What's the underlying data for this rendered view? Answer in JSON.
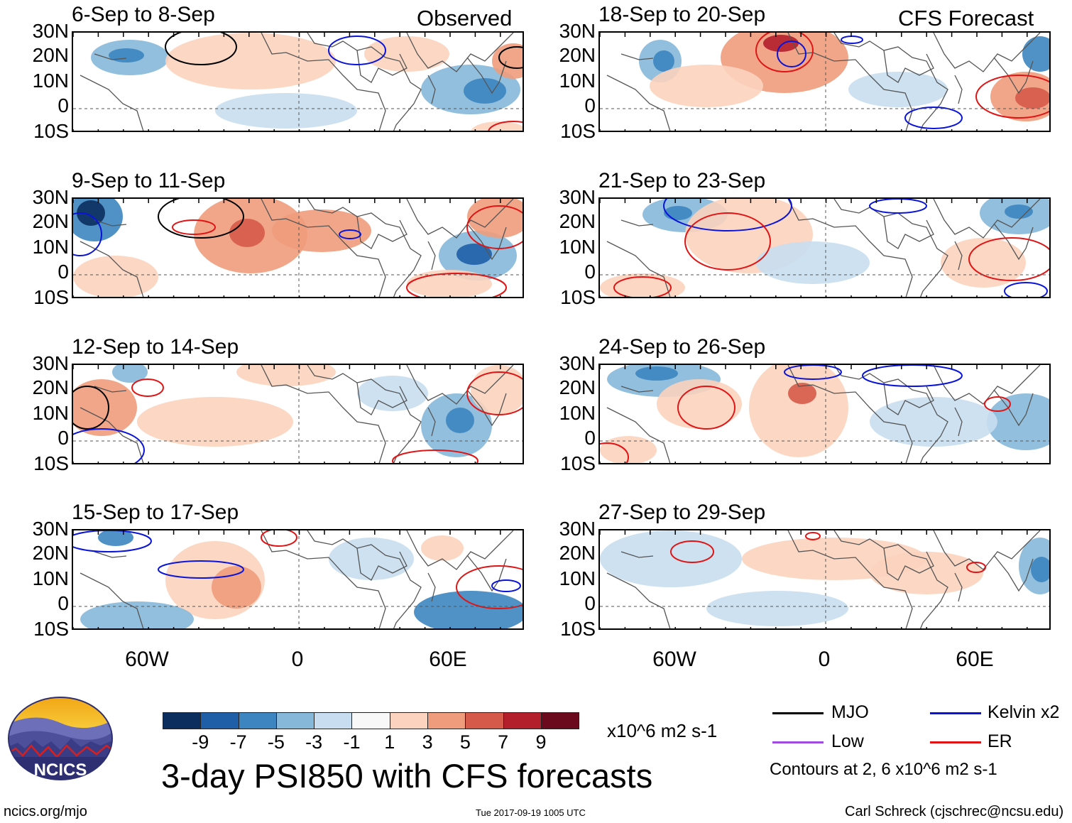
{
  "headers": {
    "observed": "Observed",
    "forecast": "CFS Forecast"
  },
  "panels": [
    {
      "id": "p1",
      "title": "6-Sep to 8-Sep"
    },
    {
      "id": "p2",
      "title": "9-Sep to 11-Sep"
    },
    {
      "id": "p3",
      "title": "12-Sep to 14-Sep"
    },
    {
      "id": "p4",
      "title": "15-Sep to 17-Sep"
    },
    {
      "id": "p5",
      "title": "18-Sep to 20-Sep"
    },
    {
      "id": "p6",
      "title": "21-Sep to 23-Sep"
    },
    {
      "id": "p7",
      "title": "24-Sep to 26-Sep"
    },
    {
      "id": "p8",
      "title": "27-Sep to 29-Sep"
    }
  ],
  "lat_labels": [
    "30N",
    "20N",
    "10N",
    "0",
    "10S"
  ],
  "lon_labels": [
    "60W",
    "0",
    "60E"
  ],
  "colorbar": {
    "colors": [
      "#0b2e5e",
      "#1f5fa8",
      "#3d85c0",
      "#86b8d9",
      "#c8def0",
      "#f8f8f8",
      "#fbd3be",
      "#ef9c7c",
      "#d65a4a",
      "#b41f2c",
      "#6b0a1c"
    ],
    "ticks": [
      "-9",
      "-7",
      "-5",
      "-3",
      "-1",
      "1",
      "3",
      "5",
      "7",
      "9"
    ],
    "units": "x10^6 m2 s-1"
  },
  "main_title": "3-day PSI850 with CFS forecasts",
  "legend": {
    "mjo": {
      "label": "MJO",
      "color": "#000000"
    },
    "low": {
      "label": "Low",
      "color": "#a04be0"
    },
    "kelvin": {
      "label": "Kelvin x2",
      "color": "#0a14d8"
    },
    "er": {
      "label": "ER",
      "color": "#e01414"
    },
    "contours_note": "Contours at 2, 6 x10^6 m2 s-1"
  },
  "logo": {
    "text": "NCICS"
  },
  "footer": {
    "url": "ncics.org/mjo",
    "timestamp": "Tue 2017-09-19 1005 UTC",
    "author": "Carl Schreck (cjschrec@ncsu.edu)"
  }
}
